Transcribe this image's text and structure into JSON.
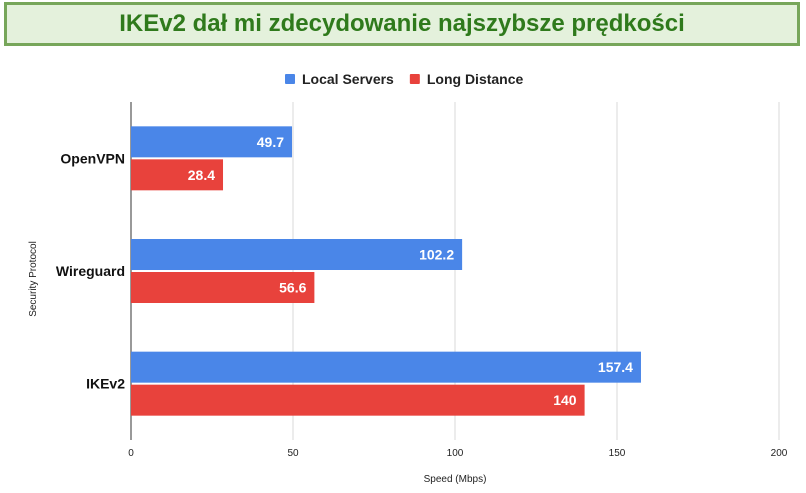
{
  "banner": {
    "title": "IKEv2 dał mi zdecydowanie najszybsze prędkości"
  },
  "colors": {
    "local": "#4a86e8",
    "long": "#e8423c",
    "banner_bg": "#e4f1dc",
    "banner_border": "#77a65a",
    "banner_text": "#2f7a1c"
  },
  "chart_data": {
    "type": "bar",
    "orientation": "horizontal",
    "categories": [
      "OpenVPN",
      "Wireguard",
      "IKEv2"
    ],
    "series": [
      {
        "name": "Local Servers",
        "values": [
          49.7,
          102.2,
          157.4
        ],
        "labels": [
          "49.7",
          "102.2",
          "157.4"
        ],
        "color": "#4a86e8"
      },
      {
        "name": "Long Distance",
        "values": [
          28.4,
          56.6,
          140
        ],
        "labels": [
          "28.4",
          "56.6",
          "140"
        ],
        "color": "#e8423c"
      }
    ],
    "xlabel": "Speed (Mbps)",
    "ylabel": "Security Protocol",
    "xlim": [
      0,
      200
    ],
    "xticks": [
      0,
      50,
      100,
      150,
      200
    ],
    "grid": "vertical",
    "legend": "top-center"
  }
}
